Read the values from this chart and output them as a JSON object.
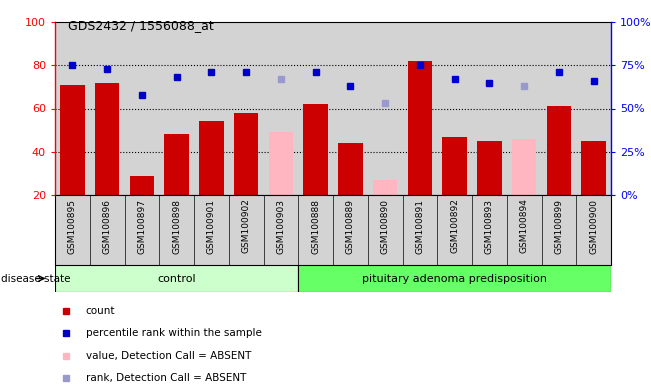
{
  "title": "GDS2432 / 1556088_at",
  "samples": [
    "GSM100895",
    "GSM100896",
    "GSM100897",
    "GSM100898",
    "GSM100901",
    "GSM100902",
    "GSM100903",
    "GSM100888",
    "GSM100889",
    "GSM100890",
    "GSM100891",
    "GSM100892",
    "GSM100893",
    "GSM100894",
    "GSM100899",
    "GSM100900"
  ],
  "count_values": [
    71,
    72,
    29,
    48,
    54,
    58,
    null,
    62,
    44,
    null,
    82,
    47,
    45,
    null,
    61,
    45
  ],
  "absent_value_values": [
    null,
    null,
    null,
    null,
    null,
    null,
    49,
    null,
    null,
    27,
    null,
    null,
    null,
    46,
    null,
    null
  ],
  "percentile_values": [
    75,
    73,
    58,
    68,
    71,
    71,
    null,
    71,
    63,
    null,
    75,
    67,
    65,
    null,
    71,
    66
  ],
  "absent_rank_values": [
    null,
    null,
    null,
    null,
    null,
    null,
    67,
    null,
    null,
    53,
    null,
    null,
    null,
    63,
    null,
    null
  ],
  "control_count": 7,
  "disease_count": 9,
  "ylim_left": [
    20,
    100
  ],
  "ylim_right": [
    0,
    100
  ],
  "bar_color_normal": "#cc0000",
  "bar_color_absent_value": "#ffb6c1",
  "dot_color_normal": "#0000cc",
  "dot_color_absent": "#9999cc",
  "control_group_color": "#ccffcc",
  "disease_group_color": "#66ff66",
  "sample_bg_color": "#d3d3d3",
  "right_ticks": [
    0,
    25,
    50,
    75,
    100
  ],
  "right_tick_labels": [
    "0%",
    "25%",
    "50%",
    "75%",
    "100%"
  ],
  "left_ticks": [
    20,
    40,
    60,
    80,
    100
  ],
  "legend_items": [
    {
      "color": "#cc0000",
      "label": "count"
    },
    {
      "color": "#0000cc",
      "label": "percentile rank within the sample"
    },
    {
      "color": "#ffb6c1",
      "label": "value, Detection Call = ABSENT"
    },
    {
      "color": "#9999cc",
      "label": "rank, Detection Call = ABSENT"
    }
  ]
}
